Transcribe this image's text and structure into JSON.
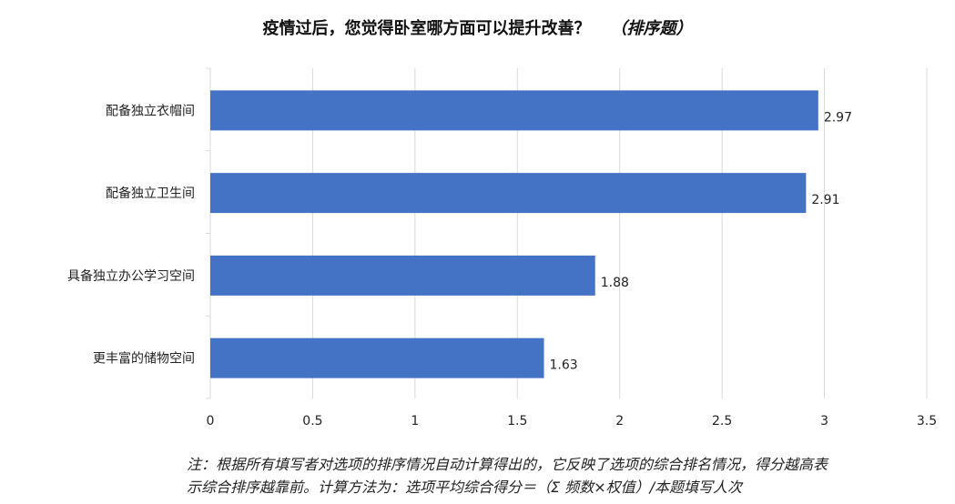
{
  "chart_data": {
    "type": "bar",
    "orientation": "horizontal",
    "title": "疫情过后，您觉得卧室哪方面可以提升改善？",
    "subtitle": "（排序题）",
    "categories": [
      "配备独立衣帽间",
      "配备独立卫生间",
      "具备独立办公学习空间",
      "更丰富的储物空间"
    ],
    "values": [
      2.97,
      2.91,
      1.88,
      1.63
    ],
    "data_labels": [
      "2.97",
      "2.91",
      "1.88",
      "1.63"
    ],
    "xlim": [
      0,
      3.5
    ],
    "xticks": [
      "0",
      "0.5",
      "1",
      "1.5",
      "2",
      "2.5",
      "3",
      "3.5"
    ],
    "xtick_values": [
      0,
      0.5,
      1,
      1.5,
      2,
      2.5,
      3,
      3.5
    ],
    "grid": "vertical",
    "bar_color": "#4472C4",
    "xlabel": "",
    "ylabel": ""
  },
  "note": {
    "line1": "注：根据所有填写者对选项的排序情况自动计算得出的，它反映了选项的综合排名情况，得分越高表",
    "line2": "示综合排序越靠前。计算方法为：选项平均综合得分＝（Σ 频数×权值）/本题填写人次"
  }
}
